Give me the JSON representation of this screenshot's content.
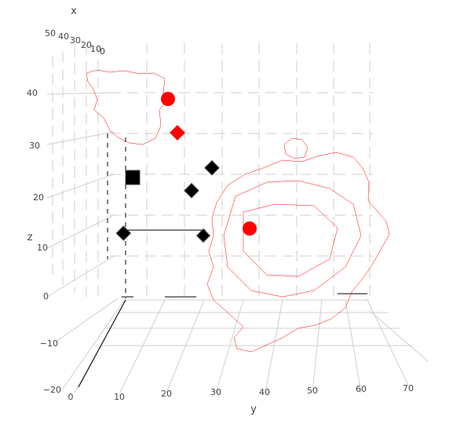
{
  "chart_data": {
    "type": "scatter3d",
    "title": "",
    "axes": {
      "x": {
        "label": "x",
        "ticks": [
          "50",
          "40",
          "30",
          "20",
          "10",
          "0"
        ]
      },
      "y": {
        "label": "y",
        "ticks": [
          "0",
          "10",
          "20",
          "30",
          "40",
          "50",
          "60",
          "70"
        ]
      },
      "z": {
        "label": "z",
        "ticks": [
          "40",
          "30",
          "20",
          "10",
          "0",
          "−10",
          "−20"
        ]
      }
    },
    "mesh_color": "#ff0000",
    "surfaces": [
      {
        "name": "surface-upper-left",
        "color": "#ff0000"
      },
      {
        "name": "surface-large-right",
        "color": "#ff0000"
      },
      {
        "name": "surface-small-top",
        "color": "#ff0000"
      }
    ],
    "markers": [
      {
        "symbol": "circle",
        "color": "#ff0000",
        "x": 28,
        "y": 14,
        "z": 36
      },
      {
        "symbol": "diamond",
        "color": "#ff0000",
        "x": 24,
        "y": 18,
        "z": 31
      },
      {
        "symbol": "circle",
        "color": "#ff0000",
        "x": 12,
        "y": 40,
        "z": 9
      },
      {
        "symbol": "square",
        "color": "#000000",
        "x": 30,
        "y": 10,
        "z": 24
      },
      {
        "symbol": "diamond",
        "color": "#000000",
        "x": 22,
        "y": 25,
        "z": 23
      },
      {
        "symbol": "diamond",
        "color": "#000000",
        "x": 18,
        "y": 27,
        "z": 26
      },
      {
        "symbol": "diamond",
        "color": "#000000",
        "x": 30,
        "y": 8,
        "z": 11
      },
      {
        "symbol": "diamond",
        "color": "#000000",
        "x": 10,
        "y": 28,
        "z": 10
      }
    ]
  }
}
